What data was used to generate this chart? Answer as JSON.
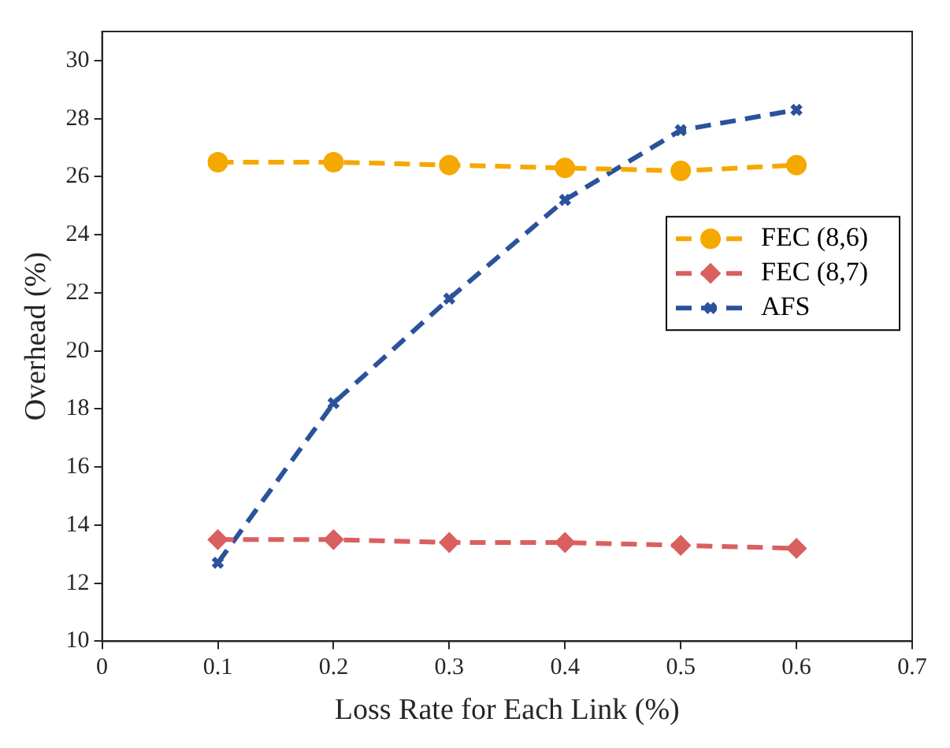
{
  "chart_data": {
    "type": "line",
    "xlabel": "Loss Rate for Each Link (%)",
    "ylabel": "Overhead (%)",
    "x": [
      0.1,
      0.2,
      0.3,
      0.4,
      0.5,
      0.6
    ],
    "series": [
      {
        "name": "FEC (8,6)",
        "color": "#f5a800",
        "marker": "circle",
        "values": [
          26.5,
          26.5,
          26.4,
          26.3,
          26.2,
          26.4
        ]
      },
      {
        "name": "FEC (8,7)",
        "color": "#d9605f",
        "marker": "diamond",
        "values": [
          13.5,
          13.5,
          13.4,
          13.4,
          13.3,
          13.2
        ]
      },
      {
        "name": "AFS",
        "color": "#2b529b",
        "marker": "cross",
        "values": [
          12.7,
          18.2,
          21.8,
          25.2,
          27.6,
          28.3
        ]
      }
    ],
    "xlim": [
      0,
      0.7
    ],
    "xticks": [
      0,
      0.1,
      0.2,
      0.3,
      0.4,
      0.5,
      0.6,
      0.7
    ],
    "ylim": [
      10,
      31
    ],
    "yticks": [
      10,
      12,
      14,
      16,
      18,
      20,
      22,
      24,
      26,
      28,
      30
    ],
    "legend": "right",
    "line_style": "dashed",
    "grid": false
  }
}
